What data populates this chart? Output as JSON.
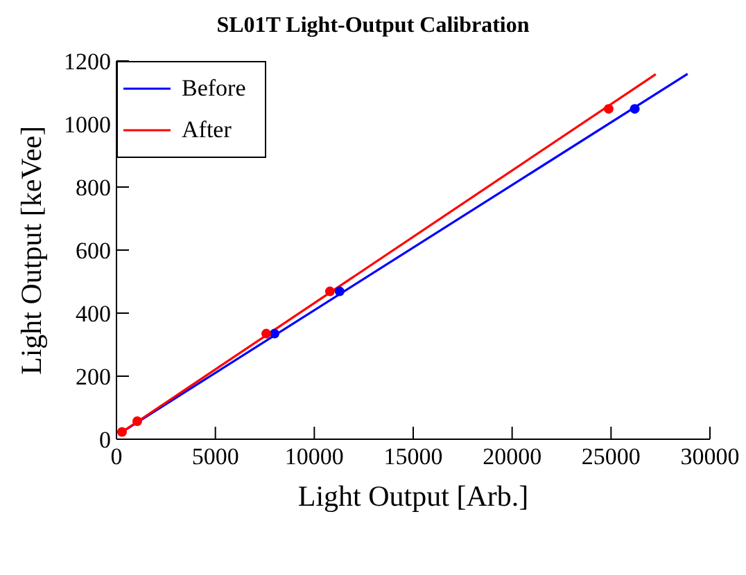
{
  "chart_data": {
    "type": "scatter",
    "title": "SL01T Light-Output Calibration",
    "xlabel": "Light Output [Arb.]",
    "ylabel": "Light Output [keVee]",
    "xlim": [
      0,
      30000
    ],
    "xticks": [
      0,
      5000,
      10000,
      15000,
      20000,
      25000,
      30000
    ],
    "ylim": [
      0,
      1200
    ],
    "yticks": [
      0,
      200,
      400,
      600,
      800,
      1000,
      1200
    ],
    "grid": false,
    "legend": "top left",
    "marker": "circle",
    "series": [
      {
        "name": "Before",
        "type": "line",
        "marker": "none",
        "color": "#0000ff",
        "x": [
          280,
          28870
        ],
        "values": [
          23,
          1159
        ]
      },
      {
        "name": "After",
        "type": "line",
        "marker": "none",
        "color": "#ff0000",
        "x": [
          280,
          27260
        ],
        "values": [
          23,
          1158
        ]
      },
      {
        "color": "#0000ff",
        "x": [
          7990,
          11280,
          26200
        ],
        "values": [
          335,
          469,
          1048
        ]
      },
      {
        "color": "#ff0000",
        "x": [
          280,
          1050,
          7570,
          10790,
          24880
        ],
        "values": [
          23,
          57,
          335,
          469,
          1048
        ]
      }
    ]
  }
}
